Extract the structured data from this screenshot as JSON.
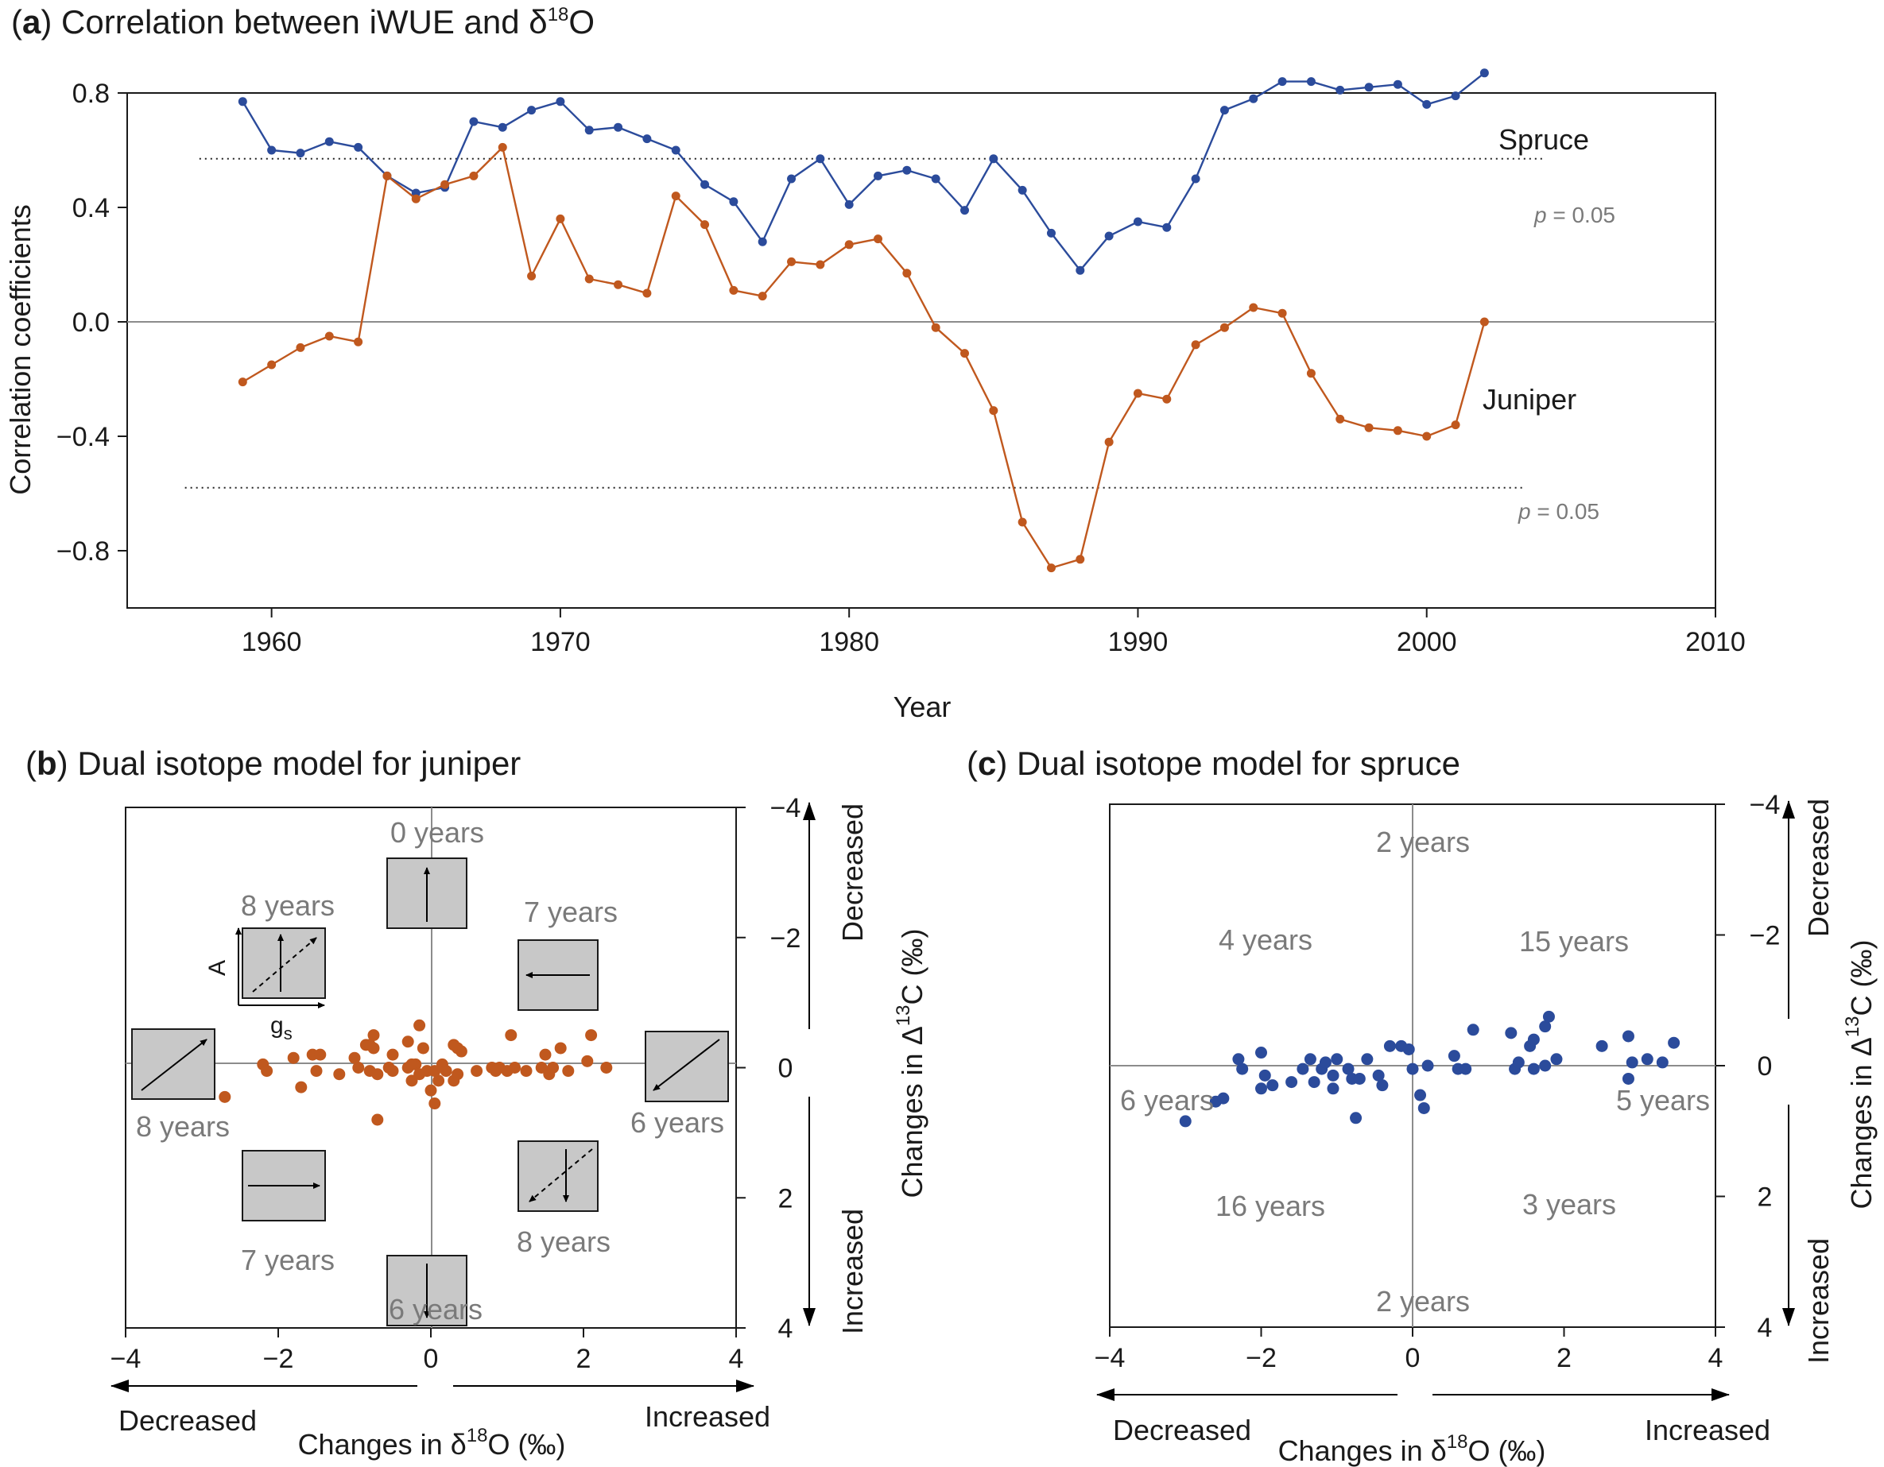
{
  "colors": {
    "spruce": "#2b4b9b",
    "juniper": "#c0581e",
    "label_gray": "#7a7a7a",
    "panel_fill": "#c8c8c8"
  },
  "panel_a": {
    "title_letter": "a",
    "title_text": "Correlation between iWUE and δ",
    "title_sup": "18",
    "title_tail": "O",
    "xlabel": "Year",
    "ylabel": "Correlation coefficients",
    "x_ticks": [
      "1960",
      "1970",
      "1980",
      "1990",
      "2000",
      "2010"
    ],
    "y_ticks": [
      "0.8",
      "0.4",
      "0.0",
      "−0.4",
      "−0.8"
    ],
    "p_upper": "p = 0.05",
    "p_lower": "p = 0.05",
    "spruce_label": "Spruce",
    "juniper_label": "Juniper"
  },
  "panel_b": {
    "title_letter": "b",
    "title_text": "Dual isotope model for juniper",
    "x_ticks": [
      "−4",
      "−2",
      "0",
      "2",
      "4"
    ],
    "y_ticks": [
      "−4",
      "−2",
      "0",
      "2",
      "4"
    ],
    "xlabel": "Changes in δ",
    "xlabel_sup": "18",
    "xlabel_tail": "O (‰)",
    "ylabel": "Changes in Δ",
    "ylabel_sup": "13",
    "ylabel_tail": "C (‰)",
    "x_decreased": "Decreased",
    "x_increased": "Increased",
    "y_decreased": "Decreased",
    "y_increased": "Increased",
    "legend_y": "A",
    "legend_x": "g",
    "legend_x_sub": "s",
    "years": {
      "top": "0 years",
      "upper_left": "8 years",
      "upper_right": "7 years",
      "left": "8 years",
      "right": "6 years",
      "lower_left": "7 years",
      "lower_right": "8 years",
      "bottom": "6 years"
    }
  },
  "panel_c": {
    "title_letter": "c",
    "title_text": "Dual isotope model for spruce",
    "x_ticks": [
      "−4",
      "−2",
      "0",
      "2",
      "4"
    ],
    "y_ticks": [
      "−4",
      "−2",
      "0",
      "2",
      "4"
    ],
    "xlabel": "Changes in δ",
    "xlabel_sup": "18",
    "xlabel_tail": "O (‰)",
    "ylabel": "Changes in Δ",
    "ylabel_sup": "13",
    "ylabel_tail": "C (‰)",
    "x_decreased": "Decreased",
    "x_increased": "Increased",
    "y_decreased": "Decreased",
    "y_increased": "Increased",
    "years": {
      "top": "2 years",
      "upper_left": "4 years",
      "upper_right": "15 years",
      "left": "6 years",
      "right": "5 years",
      "lower_left": "16 years",
      "lower_right": "3 years",
      "bottom": "2 years"
    }
  },
  "chart_data": [
    {
      "panel": "a",
      "type": "line",
      "title": "(a) Correlation between iWUE and δ18O",
      "xlabel": "Year",
      "ylabel": "Correlation coefficients",
      "xlim": [
        1955,
        2010
      ],
      "ylim": [
        -1.0,
        0.8
      ],
      "x": [
        1959,
        1960,
        1961,
        1962,
        1963,
        1964,
        1965,
        1966,
        1967,
        1968,
        1969,
        1970,
        1971,
        1972,
        1973,
        1974,
        1975,
        1976,
        1977,
        1978,
        1979,
        1980,
        1981,
        1982,
        1983,
        1984,
        1985,
        1986,
        1987,
        1988,
        1989,
        1990,
        1991,
        1992,
        1993,
        1994,
        1995,
        1996,
        1997,
        1998,
        1999,
        2000,
        2001,
        2002
      ],
      "series": [
        {
          "name": "Spruce",
          "values": [
            0.77,
            0.6,
            0.59,
            0.63,
            0.61,
            0.51,
            0.45,
            0.47,
            0.7,
            0.68,
            0.74,
            0.77,
            0.67,
            0.68,
            0.64,
            0.6,
            0.48,
            0.42,
            0.28,
            0.5,
            0.57,
            0.41,
            0.51,
            0.53,
            0.5,
            0.39,
            0.57,
            0.46,
            0.31,
            0.18,
            0.3,
            0.35,
            0.33,
            0.5,
            0.74,
            0.78,
            0.84,
            0.84,
            0.81,
            0.82,
            0.83,
            0.76,
            0.79,
            0.87
          ]
        },
        {
          "name": "Juniper",
          "values": [
            -0.21,
            -0.15,
            -0.09,
            -0.05,
            -0.07,
            0.51,
            0.43,
            0.48,
            0.51,
            0.61,
            0.16,
            0.36,
            0.15,
            0.13,
            0.1,
            0.44,
            0.34,
            0.11,
            0.09,
            0.21,
            0.2,
            0.27,
            0.29,
            0.17,
            -0.02,
            -0.11,
            -0.31,
            -0.7,
            -0.86,
            -0.83,
            -0.42,
            -0.25,
            -0.27,
            -0.08,
            -0.02,
            0.05,
            0.03,
            -0.18,
            -0.34,
            -0.37,
            -0.38,
            -0.4,
            -0.36,
            0.0
          ]
        }
      ],
      "reference_lines": [
        {
          "y": 0.57,
          "style": "dotted",
          "label": "p = 0.05",
          "x_range": [
            1957,
            2004
          ]
        },
        {
          "y": -0.58,
          "style": "dotted",
          "label": "p = 0.05",
          "x_range": [
            1957,
            2004
          ]
        },
        {
          "y": 0.0,
          "style": "solid"
        }
      ],
      "grid": false
    },
    {
      "panel": "b",
      "type": "scatter",
      "title": "(b) Dual isotope model for juniper",
      "xlabel": "Changes in δ18O (‰)",
      "ylabel": "Changes in Δ13C (‰)",
      "xlim": [
        -4,
        4
      ],
      "ylim": [
        4,
        -4
      ],
      "y_axis_side": "right",
      "y_inverted": true,
      "series": [
        {
          "color": "#c0581e",
          "points": [
            [
              -2.7,
              0.45
            ],
            [
              -2.2,
              -0.05
            ],
            [
              -2.15,
              0.05
            ],
            [
              -1.8,
              -0.15
            ],
            [
              -1.7,
              0.3
            ],
            [
              -1.55,
              -0.2
            ],
            [
              -1.45,
              -0.2
            ],
            [
              -1.5,
              0.05
            ],
            [
              -1.2,
              0.1
            ],
            [
              -1.0,
              -0.15
            ],
            [
              -0.95,
              0.0
            ],
            [
              -0.85,
              -0.35
            ],
            [
              -0.8,
              0.05
            ],
            [
              -0.75,
              -0.3
            ],
            [
              -0.7,
              0.1
            ],
            [
              -0.55,
              0.0
            ],
            [
              -0.5,
              -0.2
            ],
            [
              -0.5,
              0.05
            ],
            [
              -0.3,
              0.0
            ],
            [
              -0.25,
              0.2
            ],
            [
              -0.2,
              -0.05
            ],
            [
              -0.15,
              0.1
            ],
            [
              -0.1,
              -0.3
            ],
            [
              -0.05,
              0.05
            ],
            [
              0.0,
              0.35
            ],
            [
              0.05,
              0.05
            ],
            [
              0.1,
              0.2
            ],
            [
              0.15,
              -0.05
            ],
            [
              0.2,
              0.05
            ],
            [
              0.3,
              0.2
            ],
            [
              0.35,
              0.1
            ],
            [
              0.4,
              -0.25
            ],
            [
              0.35,
              -0.3
            ],
            [
              0.6,
              0.05
            ],
            [
              0.8,
              0.0
            ],
            [
              0.85,
              0.05
            ],
            [
              0.9,
              0.0
            ],
            [
              1.0,
              0.05
            ],
            [
              1.1,
              0.0
            ],
            [
              1.25,
              0.05
            ],
            [
              1.45,
              0.0
            ],
            [
              1.5,
              -0.2
            ],
            [
              1.55,
              0.1
            ],
            [
              1.6,
              0.0
            ],
            [
              1.7,
              -0.3
            ],
            [
              1.8,
              0.05
            ],
            [
              2.05,
              -0.1
            ],
            [
              2.3,
              0.0
            ],
            [
              1.05,
              -0.5
            ],
            [
              0.3,
              -0.35
            ],
            [
              -0.15,
              -0.65
            ],
            [
              -0.3,
              -0.4
            ],
            [
              -0.75,
              -0.5
            ],
            [
              0.05,
              0.55
            ],
            [
              -0.7,
              0.8
            ],
            [
              -0.8,
              -0.35
            ],
            [
              2.1,
              -0.5
            ],
            [
              -0.25,
              -0.05
            ]
          ]
        }
      ],
      "grid": false
    },
    {
      "panel": "c",
      "type": "scatter",
      "title": "(c) Dual isotope model for spruce",
      "xlabel": "Changes in δ18O (‰)",
      "ylabel": "Changes in Δ13C (‰)",
      "xlim": [
        -4,
        4
      ],
      "ylim": [
        4,
        -4
      ],
      "y_axis_side": "right",
      "y_inverted": true,
      "series": [
        {
          "color": "#2b4b9b",
          "points": [
            [
              -3.0,
              0.85
            ],
            [
              -2.6,
              0.55
            ],
            [
              -2.5,
              0.5
            ],
            [
              -2.3,
              -0.1
            ],
            [
              -2.25,
              0.05
            ],
            [
              -2.0,
              -0.2
            ],
            [
              -2.0,
              0.35
            ],
            [
              -1.95,
              0.15
            ],
            [
              -1.85,
              0.3
            ],
            [
              -1.6,
              0.25
            ],
            [
              -1.45,
              0.05
            ],
            [
              -1.35,
              -0.1
            ],
            [
              -1.3,
              0.25
            ],
            [
              -1.2,
              0.05
            ],
            [
              -1.15,
              -0.05
            ],
            [
              -1.05,
              0.15
            ],
            [
              -1.05,
              0.35
            ],
            [
              -1.0,
              -0.1
            ],
            [
              -0.85,
              0.05
            ],
            [
              -0.8,
              0.2
            ],
            [
              -0.75,
              0.8
            ],
            [
              -0.7,
              0.2
            ],
            [
              -0.6,
              -0.1
            ],
            [
              -0.45,
              0.15
            ],
            [
              -0.4,
              0.3
            ],
            [
              -0.3,
              -0.3
            ],
            [
              -0.15,
              -0.3
            ],
            [
              -0.05,
              -0.25
            ],
            [
              0.0,
              0.05
            ],
            [
              0.1,
              0.45
            ],
            [
              0.15,
              0.65
            ],
            [
              0.2,
              0.0
            ],
            [
              0.55,
              -0.15
            ],
            [
              0.6,
              0.05
            ],
            [
              0.7,
              0.05
            ],
            [
              0.8,
              -0.55
            ],
            [
              1.3,
              -0.5
            ],
            [
              1.35,
              0.05
            ],
            [
              1.4,
              -0.05
            ],
            [
              1.55,
              -0.3
            ],
            [
              1.6,
              -0.4
            ],
            [
              1.75,
              -0.6
            ],
            [
              1.8,
              -0.75
            ],
            [
              1.6,
              0.05
            ],
            [
              1.9,
              -0.1
            ],
            [
              2.5,
              -0.3
            ],
            [
              2.85,
              -0.45
            ],
            [
              2.9,
              -0.05
            ],
            [
              2.85,
              0.2
            ],
            [
              3.1,
              -0.1
            ],
            [
              3.3,
              -0.05
            ],
            [
              3.45,
              -0.35
            ],
            [
              1.75,
              0.0
            ]
          ]
        }
      ],
      "grid": false
    }
  ]
}
